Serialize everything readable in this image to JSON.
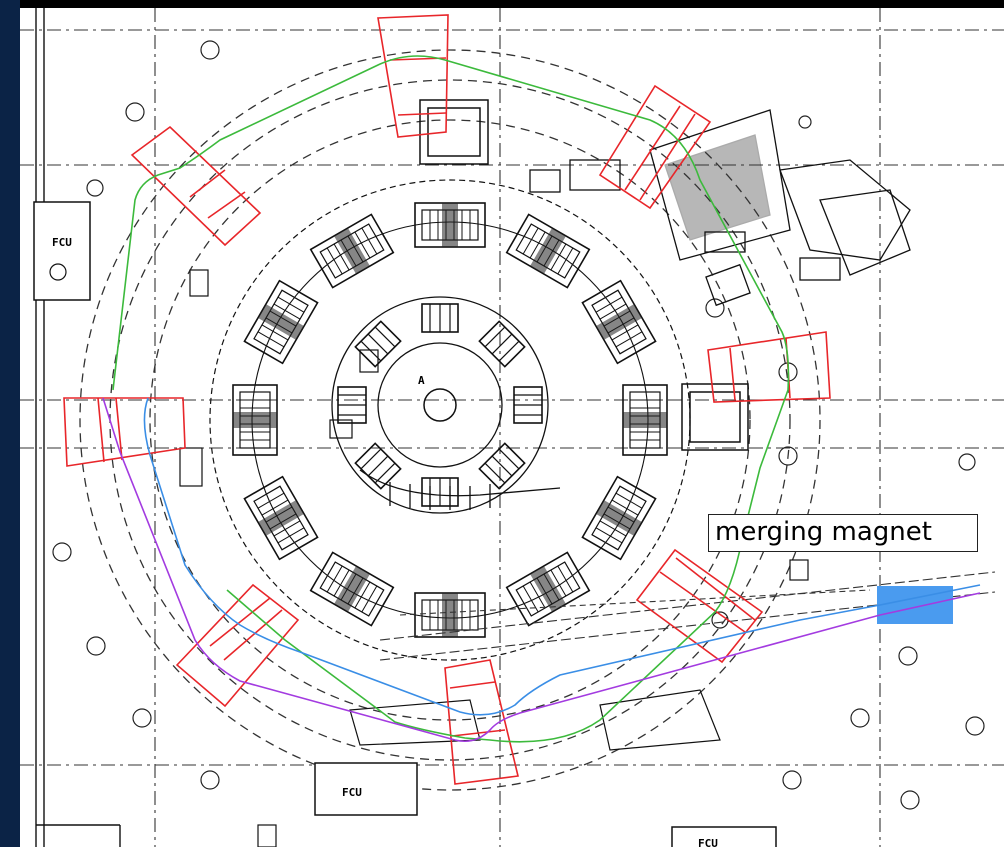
{
  "labels": {
    "fcu_left": "FCU",
    "fcu_bottom": "FCU",
    "fcu_bottom_right": "FCU",
    "marker_a": "A",
    "callout": "merging magnet"
  },
  "colors": {
    "background_frame": "#000000",
    "left_bar": "#0b2346",
    "magnet_outline": "#e8262a",
    "path_green": "#3cba3c",
    "path_blue": "#3a8ee6",
    "path_purple": "#a33be0",
    "merging_magnet_fill": "#4a9bef",
    "drawing_line": "#111111"
  },
  "beam_paths": [
    "green",
    "blue",
    "purple"
  ],
  "icons": [
    "fcu-box",
    "sector-magnet",
    "bending-magnet",
    "merging-magnet"
  ]
}
